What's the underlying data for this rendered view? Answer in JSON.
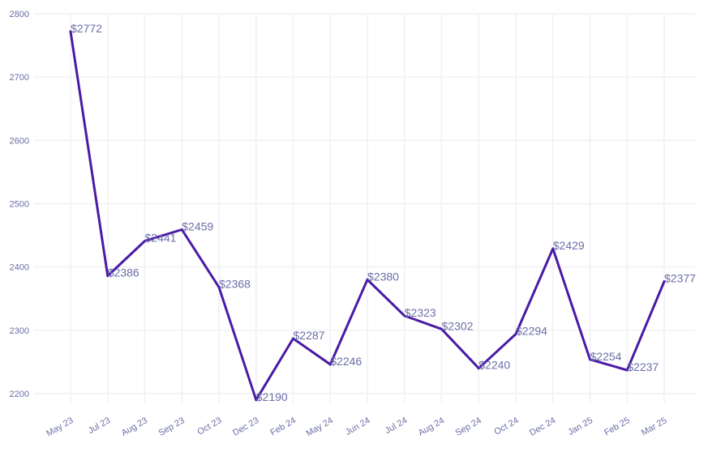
{
  "chart_data": {
    "type": "line",
    "title": "",
    "xlabel": "",
    "ylabel": "",
    "categories": [
      "May 23",
      "Jul 23",
      "Aug 23",
      "Sep 23",
      "Oct 23",
      "Dec 23",
      "Feb 24",
      "May 24",
      "Jun 24",
      "Jul 24",
      "Aug 24",
      "Sep 24",
      "Oct 24",
      "Dec 24",
      "Jan 25",
      "Feb 25",
      "Mar 25"
    ],
    "series": [
      {
        "values": [
          2772,
          2386,
          2441,
          2459,
          2368,
          2190,
          2287,
          2246,
          2380,
          2323,
          2302,
          2240,
          2294,
          2429,
          2254,
          2237,
          2377
        ]
      }
    ],
    "data_labels": [
      "$2772",
      "$2386",
      "$2441",
      "$2459",
      "$2368",
      "$2190",
      "$2287",
      "$2246",
      "$2380",
      "$2323",
      "$2302",
      "$2240",
      "$2294",
      "$2429",
      "$2254",
      "$2237",
      "$2377"
    ],
    "y_ticks": [
      "2200",
      "2300",
      "2400",
      "2500",
      "2600",
      "2700",
      "2800"
    ],
    "ylim": [
      2200,
      2800
    ],
    "grid": true,
    "legend": "none",
    "colors": {
      "line": "#4a1aa6",
      "grid": "#f3f3f8",
      "text": "#6b6ea8"
    }
  }
}
